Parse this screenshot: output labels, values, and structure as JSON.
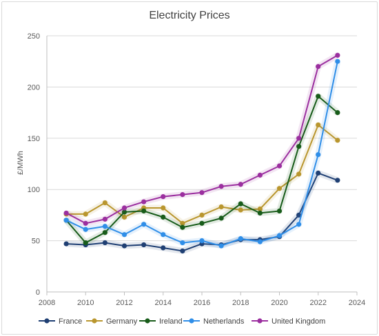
{
  "chart_data": {
    "type": "line",
    "title": "Electricity Prices",
    "xlabel": "",
    "ylabel": "£/MWh",
    "xlim": [
      2008,
      2024
    ],
    "ylim": [
      0,
      250
    ],
    "x_ticks": [
      2008,
      2010,
      2012,
      2014,
      2016,
      2018,
      2020,
      2022,
      2024
    ],
    "y_ticks": [
      0,
      50,
      100,
      150,
      200,
      250
    ],
    "grid": "horizontal",
    "legend_position": "bottom",
    "x": [
      2009,
      2010,
      2011,
      2012,
      2013,
      2014,
      2015,
      2016,
      2017,
      2018,
      2019,
      2020,
      2021,
      2022,
      2023
    ],
    "series": [
      {
        "name": "France",
        "color": "#1f3f73",
        "values": [
          47,
          46,
          48,
          45,
          46,
          43,
          40,
          47,
          46,
          51,
          51,
          54,
          75,
          116,
          109
        ]
      },
      {
        "name": "Germany",
        "color": "#b9962e",
        "values": [
          76,
          76,
          87,
          73,
          82,
          82,
          67,
          75,
          83,
          80,
          81,
          101,
          115,
          163,
          148
        ]
      },
      {
        "name": "Ireland",
        "color": "#185c1a",
        "values": [
          70,
          48,
          58,
          78,
          79,
          73,
          63,
          67,
          72,
          86,
          77,
          79,
          142,
          191,
          175
        ]
      },
      {
        "name": "Netherlands",
        "color": "#2f8ee8",
        "values": [
          70,
          61,
          64,
          56,
          66,
          56,
          48,
          50,
          45,
          52,
          49,
          55,
          66,
          134,
          225
        ]
      },
      {
        "name": "United Kingdom",
        "color": "#9b2f9f",
        "values": [
          77,
          67,
          71,
          82,
          88,
          93,
          95,
          97,
          103,
          105,
          114,
          123,
          150,
          220,
          231
        ]
      }
    ]
  }
}
